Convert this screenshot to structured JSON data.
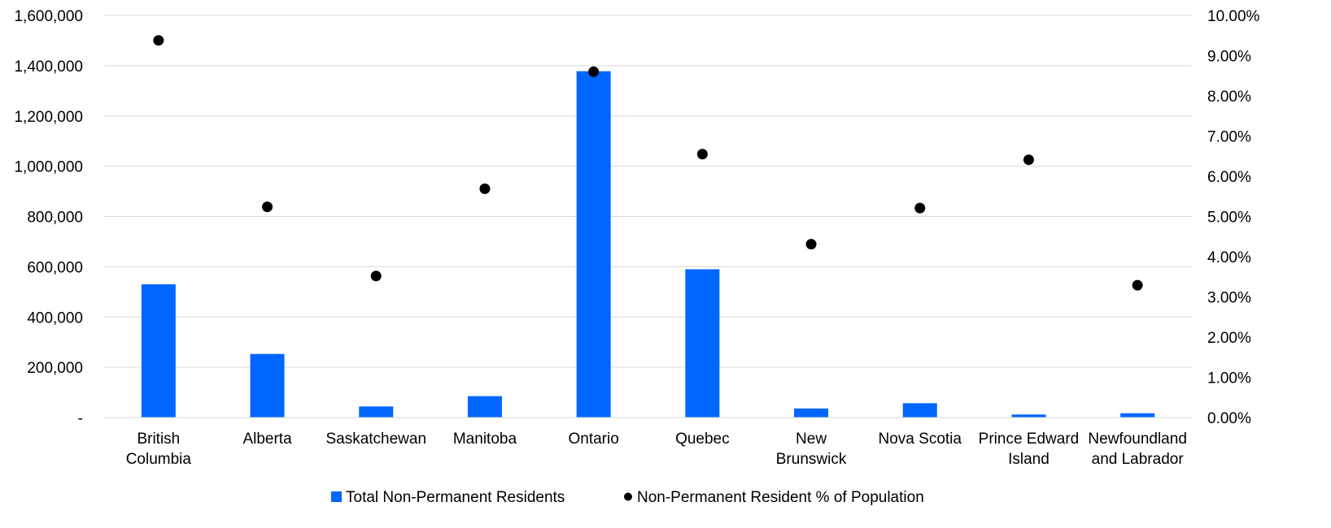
{
  "chart_data": {
    "type": "bar",
    "categories": [
      [
        "British",
        "Columbia"
      ],
      [
        "Alberta"
      ],
      [
        "Saskatchewan"
      ],
      [
        "Manitoba"
      ],
      [
        "Ontario"
      ],
      [
        "Quebec"
      ],
      [
        "New",
        "Brunswick"
      ],
      [
        "Nova Scotia"
      ],
      [
        "Prince Edward",
        "Island"
      ],
      [
        "Newfoundland",
        "and Labrador"
      ]
    ],
    "series": [
      {
        "name": "Total Non-Permanent Residents",
        "type": "bar",
        "axis": "left",
        "color": "#0066ff",
        "values": [
          530000,
          253000,
          44000,
          85000,
          1378000,
          590000,
          36000,
          57000,
          12000,
          17000
        ]
      },
      {
        "name": "Non-Permanent Resident % of Population",
        "type": "scatter",
        "axis": "right",
        "color": "#000000",
        "values": [
          0.0938,
          0.0524,
          0.0352,
          0.0569,
          0.086,
          0.0655,
          0.0431,
          0.0521,
          0.0641,
          0.0329
        ]
      }
    ],
    "y_left": {
      "ylim": [
        0,
        1600000
      ],
      "ticks": [
        0,
        200000,
        400000,
        600000,
        800000,
        1000000,
        1200000,
        1400000,
        1600000
      ],
      "tick_labels": [
        "-",
        "200,000",
        "400,000",
        "600,000",
        "800,000",
        "1,000,000",
        "1,200,000",
        "1,400,000",
        "1,600,000"
      ]
    },
    "y_right": {
      "ylim": [
        0,
        0.1
      ],
      "ticks": [
        0,
        0.01,
        0.02,
        0.03,
        0.04,
        0.05,
        0.06,
        0.07,
        0.08,
        0.09,
        0.1
      ],
      "tick_labels": [
        "0.00%",
        "1.00%",
        "2.00%",
        "3.00%",
        "4.00%",
        "5.00%",
        "6.00%",
        "7.00%",
        "8.00%",
        "9.00%",
        "10.00%"
      ]
    },
    "grid": true,
    "legend_position": "bottom"
  }
}
